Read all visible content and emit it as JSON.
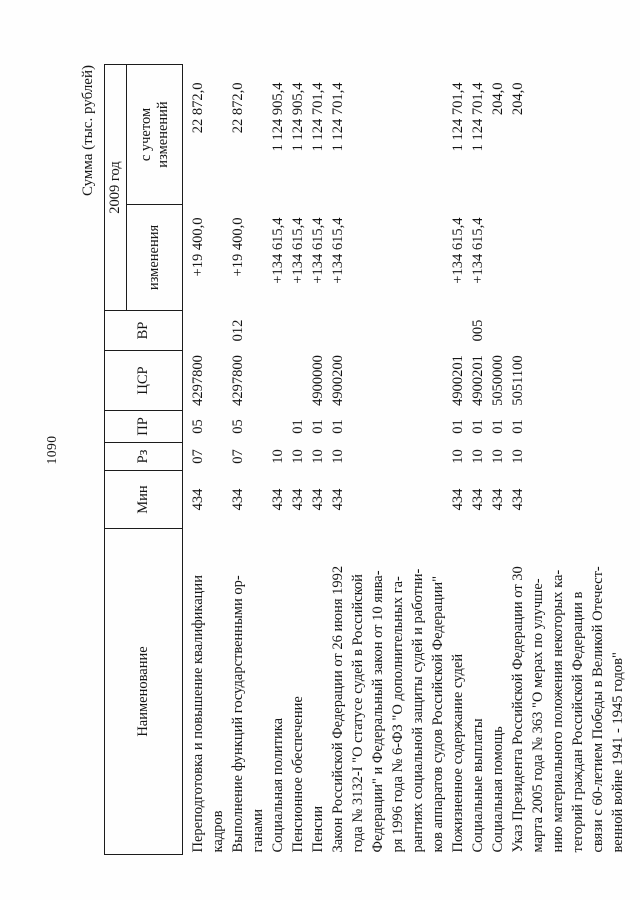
{
  "page": {
    "number": "1090",
    "units_label": "Сумма (тыс. рублей)"
  },
  "table": {
    "headers": {
      "name": "Наименование",
      "min": "Мин",
      "rz": "Рз",
      "pr": "ПР",
      "csr": "ЦСР",
      "vr": "ВР",
      "year": "2009 год",
      "changes": "изменения",
      "with_changes": "с учетом\nизменений"
    },
    "rows": [
      {
        "name": "Переподготовка и повышение квалификации\nкадров",
        "min": "434",
        "rz": "07",
        "pr": "05",
        "csr": "4297800",
        "vr": "",
        "changes": "+19 400,0",
        "with_changes": "22 872,0"
      },
      {
        "name": "Выполнение функций государственными ор-\nганами",
        "min": "434",
        "rz": "07",
        "pr": "05",
        "csr": "4297800",
        "vr": "012",
        "changes": "+19 400,0",
        "with_changes": "22 872,0"
      },
      {
        "name": "Социальная политика",
        "min": "434",
        "rz": "10",
        "pr": "",
        "csr": "",
        "vr": "",
        "changes": "+134 615,4",
        "with_changes": "1 124 905,4"
      },
      {
        "name": "Пенсионное обеспечение",
        "min": "434",
        "rz": "10",
        "pr": "01",
        "csr": "",
        "vr": "",
        "changes": "+134 615,4",
        "with_changes": "1 124 905,4"
      },
      {
        "name": "Пенсии",
        "min": "434",
        "rz": "10",
        "pr": "01",
        "csr": "4900000",
        "vr": "",
        "changes": "+134 615,4",
        "with_changes": "1 124 701,4"
      },
      {
        "name": "Закон Российской Федерации от 26 июня 1992\nгода № 3132-I \"О статусе судей в Российской\nФедерации\" и Федеральный закон от 10 янва-\nря 1996 года № 6-ФЗ \"О дополнительных га-\nрантиях социальной защиты судей и работни-\nков аппаратов судов Российской Федерации\"",
        "min": "434",
        "rz": "10",
        "pr": "01",
        "csr": "4900200",
        "vr": "",
        "changes": "+134 615,4",
        "with_changes": "1 124 701,4"
      },
      {
        "name": "Пожизненное содержание судей",
        "min": "434",
        "rz": "10",
        "pr": "01",
        "csr": "4900201",
        "vr": "",
        "changes": "+134 615,4",
        "with_changes": "1 124 701,4"
      },
      {
        "name": "Социальные выплаты",
        "min": "434",
        "rz": "10",
        "pr": "01",
        "csr": "4900201",
        "vr": "005",
        "changes": "+134 615,4",
        "with_changes": "1 124 701,4"
      },
      {
        "name": "Социальная помощь",
        "min": "434",
        "rz": "10",
        "pr": "01",
        "csr": "5050000",
        "vr": "",
        "changes": "",
        "with_changes": "204,0"
      },
      {
        "name": "Указ Президента Российской Федерации от 30\nмарта 2005 года № 363 \"О мерах по улучше-\nнию материального положения некоторых ка-\nтегорий граждан Российской Федерации в\nсвязи с 60-летием Победы в Великой Отечест-\nвенной войне 1941 - 1945 годов\"",
        "min": "434",
        "rz": "10",
        "pr": "01",
        "csr": "5051100",
        "vr": "",
        "changes": "",
        "with_changes": "204,0"
      }
    ]
  }
}
